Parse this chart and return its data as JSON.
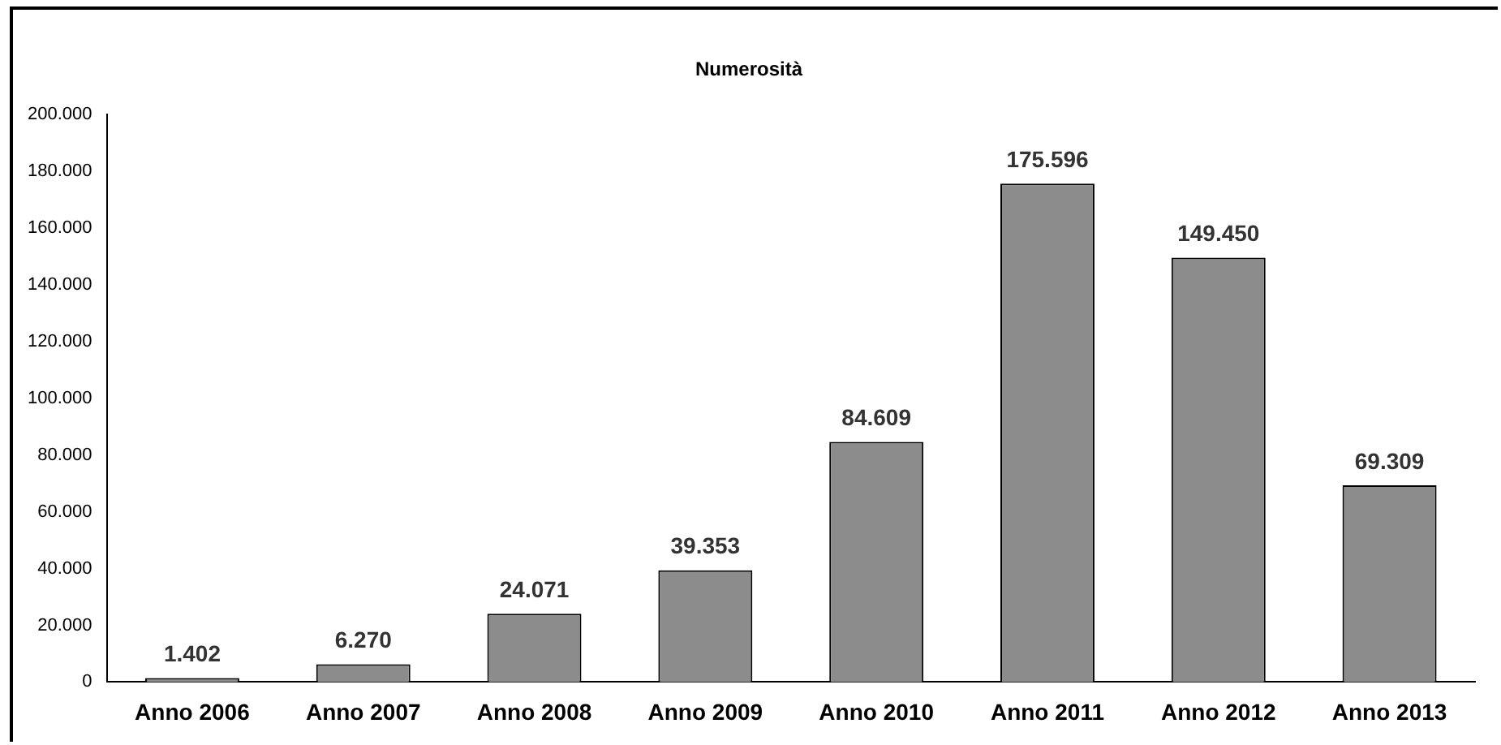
{
  "chart_data": {
    "type": "bar",
    "title": "Numerosità",
    "categories": [
      "Anno 2006",
      "Anno 2007",
      "Anno 2008",
      "Anno 2009",
      "Anno 2010",
      "Anno 2011",
      "Anno 2012",
      "Anno 2013"
    ],
    "values": [
      1402,
      6270,
      24071,
      39353,
      84609,
      175596,
      149450,
      69309
    ],
    "value_labels": [
      "1.402",
      "6.270",
      "24.071",
      "39.353",
      "84.609",
      "175.596",
      "149.450",
      "69.309"
    ],
    "color": "#8c8c8c",
    "ylim": [
      0,
      200000
    ],
    "yticks": [
      {
        "value": 0,
        "label": "0"
      },
      {
        "value": 20000,
        "label": "20.000"
      },
      {
        "value": 40000,
        "label": "40.000"
      },
      {
        "value": 60000,
        "label": "60.000"
      },
      {
        "value": 80000,
        "label": "80.000"
      },
      {
        "value": 100000,
        "label": "100.000"
      },
      {
        "value": 120000,
        "label": "120.000"
      },
      {
        "value": 140000,
        "label": "140.000"
      },
      {
        "value": 160000,
        "label": "160.000"
      },
      {
        "value": 180000,
        "label": "180.000"
      },
      {
        "value": 200000,
        "label": "200.000"
      }
    ],
    "grid": false,
    "legend": false
  }
}
